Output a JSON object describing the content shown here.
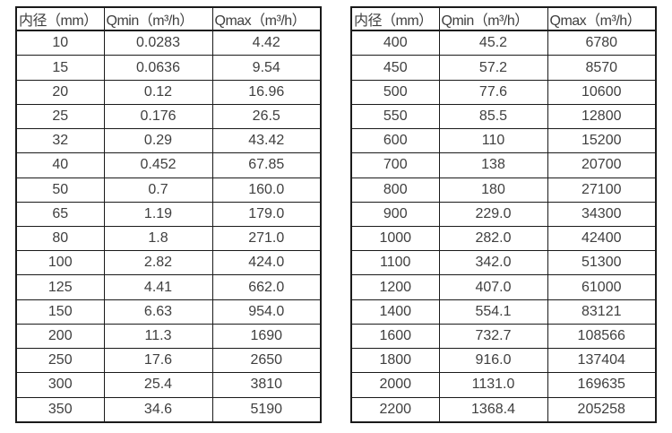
{
  "page": {
    "background": "#ffffff",
    "text_color": "#3f3f3f",
    "border_color": "#1a1a1a"
  },
  "left_table": {
    "headers": [
      "内径（mm）",
      "Qmin（m³/h）",
      "Qmax（m³/h）"
    ],
    "rows": [
      [
        "10",
        "0.0283",
        "4.42"
      ],
      [
        "15",
        "0.0636",
        "9.54"
      ],
      [
        "20",
        "0.12",
        "16.96"
      ],
      [
        "25",
        "0.176",
        "26.5"
      ],
      [
        "32",
        "0.29",
        "43.42"
      ],
      [
        "40",
        "0.452",
        "67.85"
      ],
      [
        "50",
        "0.7",
        "160.0"
      ],
      [
        "65",
        "1.19",
        "179.0"
      ],
      [
        "80",
        "1.8",
        "271.0"
      ],
      [
        "100",
        "2.82",
        "424.0"
      ],
      [
        "125",
        "4.41",
        "662.0"
      ],
      [
        "150",
        "6.63",
        "954.0"
      ],
      [
        "200",
        "11.3",
        "1690"
      ],
      [
        "250",
        "17.6",
        "2650"
      ],
      [
        "300",
        "25.4",
        "3810"
      ],
      [
        "350",
        "34.6",
        "5190"
      ]
    ]
  },
  "right_table": {
    "headers": [
      "内径（mm）",
      "Qmin（m³/h）",
      "Qmax（m³/h）"
    ],
    "rows": [
      [
        "400",
        "45.2",
        "6780"
      ],
      [
        "450",
        "57.2",
        "8570"
      ],
      [
        "500",
        "77.6",
        "10600"
      ],
      [
        "550",
        "85.5",
        "12800"
      ],
      [
        "600",
        "110",
        "15200"
      ],
      [
        "700",
        "138",
        "20700"
      ],
      [
        "800",
        "180",
        "27100"
      ],
      [
        "900",
        "229.0",
        "34300"
      ],
      [
        "1000",
        "282.0",
        "42400"
      ],
      [
        "1100",
        "342.0",
        "51300"
      ],
      [
        "1200",
        "407.0",
        "61000"
      ],
      [
        "1400",
        "554.1",
        "83121"
      ],
      [
        "1600",
        "732.7",
        "108566"
      ],
      [
        "1800",
        "916.0",
        "137404"
      ],
      [
        "2000",
        "1131.0",
        "169635"
      ],
      [
        "2200",
        "1368.4",
        "205258"
      ]
    ]
  }
}
